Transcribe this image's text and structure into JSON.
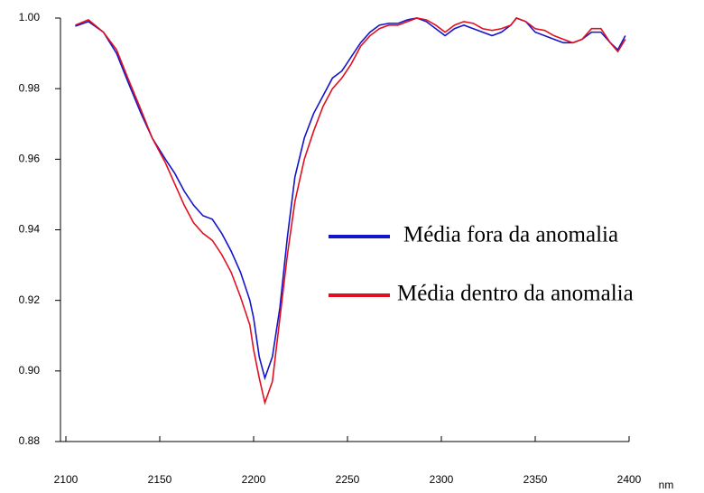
{
  "chart_data": {
    "type": "line",
    "xlabel": "nm",
    "x": [
      2105,
      2112,
      2120,
      2127,
      2133,
      2140,
      2146,
      2153,
      2158,
      2163,
      2168,
      2173,
      2178,
      2183,
      2188,
      2193,
      2198,
      2200,
      2203,
      2206,
      2210,
      2214,
      2218,
      2222,
      2227,
      2232,
      2237,
      2242,
      2247,
      2252,
      2257,
      2262,
      2267,
      2272,
      2277,
      2282,
      2287,
      2292,
      2297,
      2302,
      2307,
      2312,
      2317,
      2322,
      2327,
      2332,
      2337,
      2340,
      2345,
      2350,
      2355,
      2360,
      2365,
      2370,
      2375,
      2380,
      2385,
      2390,
      2394,
      2398
    ],
    "series": [
      {
        "name": "Média fora da anomalia",
        "color": "#1414c8",
        "values": [
          0.9977,
          0.999,
          0.996,
          0.99,
          0.982,
          0.973,
          0.966,
          0.96,
          0.956,
          0.951,
          0.947,
          0.944,
          0.943,
          0.939,
          0.934,
          0.928,
          0.92,
          0.915,
          0.904,
          0.898,
          0.904,
          0.918,
          0.938,
          0.955,
          0.966,
          0.973,
          0.978,
          0.983,
          0.985,
          0.989,
          0.993,
          0.996,
          0.998,
          0.9985,
          0.9985,
          0.9995,
          1.0,
          0.999,
          0.997,
          0.995,
          0.997,
          0.998,
          0.997,
          0.996,
          0.995,
          0.996,
          0.998,
          1.0,
          0.999,
          0.996,
          0.995,
          0.994,
          0.993,
          0.993,
          0.994,
          0.996,
          0.996,
          0.993,
          0.991,
          0.995
        ]
      },
      {
        "name": "Média dentro da anomalia",
        "color": "#e01020",
        "values": [
          0.998,
          0.9995,
          0.996,
          0.991,
          0.983,
          0.974,
          0.966,
          0.959,
          0.953,
          0.947,
          0.942,
          0.939,
          0.937,
          0.933,
          0.928,
          0.921,
          0.913,
          0.906,
          0.898,
          0.891,
          0.897,
          0.915,
          0.933,
          0.948,
          0.96,
          0.968,
          0.975,
          0.98,
          0.983,
          0.987,
          0.992,
          0.995,
          0.997,
          0.998,
          0.998,
          0.999,
          1.0,
          0.9995,
          0.998,
          0.996,
          0.998,
          0.999,
          0.9985,
          0.997,
          0.9965,
          0.997,
          0.998,
          1.0,
          0.999,
          0.997,
          0.9965,
          0.995,
          0.994,
          0.993,
          0.994,
          0.997,
          0.997,
          0.993,
          0.9905,
          0.994
        ]
      }
    ],
    "xlim": [
      2100,
      2400
    ],
    "xticks": [
      2100,
      2150,
      2200,
      2250,
      2300,
      2350,
      2400
    ],
    "ylim": [
      0.88,
      1.0
    ],
    "yticks": [
      {
        "value": 0.88,
        "label": "0.88"
      },
      {
        "value": 0.9,
        "label": "0.90"
      },
      {
        "value": 0.92,
        "label": "0.92"
      },
      {
        "value": 0.94,
        "label": "0.94"
      },
      {
        "value": 0.96,
        "label": "0.96"
      },
      {
        "value": 0.98,
        "label": "0.98"
      },
      {
        "value": 1.0,
        "label": "1.00"
      }
    ],
    "grid": false
  }
}
